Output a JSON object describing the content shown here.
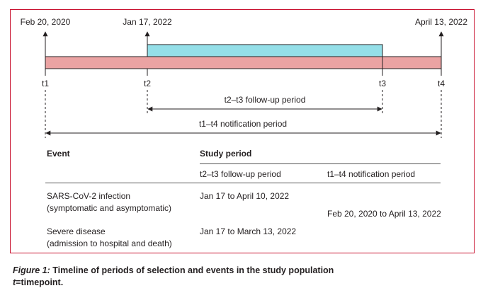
{
  "timeline": {
    "dates": {
      "t1": "Feb 20, 2020",
      "t2": "Jan 17, 2022",
      "t4": "April 13, 2022"
    },
    "points": {
      "t1": "t1",
      "t2": "t2",
      "t3": "t3",
      "t4": "t4"
    },
    "followup_label": "t2–t3 follow-up period",
    "notification_label": "t1–t4 notification period",
    "colors": {
      "notification_bar": "#eba3a3",
      "followup_bar": "#94dfe8",
      "frame": "#c8102e"
    }
  },
  "table": {
    "event_header": "Event",
    "study_period_header": "Study period",
    "subheaders": {
      "followup": "t2–t3 follow-up period",
      "notification": "t1–t4 notification period"
    },
    "rows": [
      {
        "event_line1": "SARS-CoV-2 infection",
        "event_line2": "(symptomatic and asymptomatic)",
        "followup": "Jan 17 to April 10, 2022"
      },
      {
        "event_line1": "Severe disease",
        "event_line2": "(admission to hospital and death)",
        "followup": "Jan 17 to March 13, 2022"
      }
    ],
    "notification_period": "Feb 20, 2020 to April 13, 2022"
  },
  "caption": {
    "figure_label": "Figure 1:",
    "title": " Timeline of periods of selection and events in the study population",
    "t_var": "t",
    "t_def": "=timepoint."
  }
}
